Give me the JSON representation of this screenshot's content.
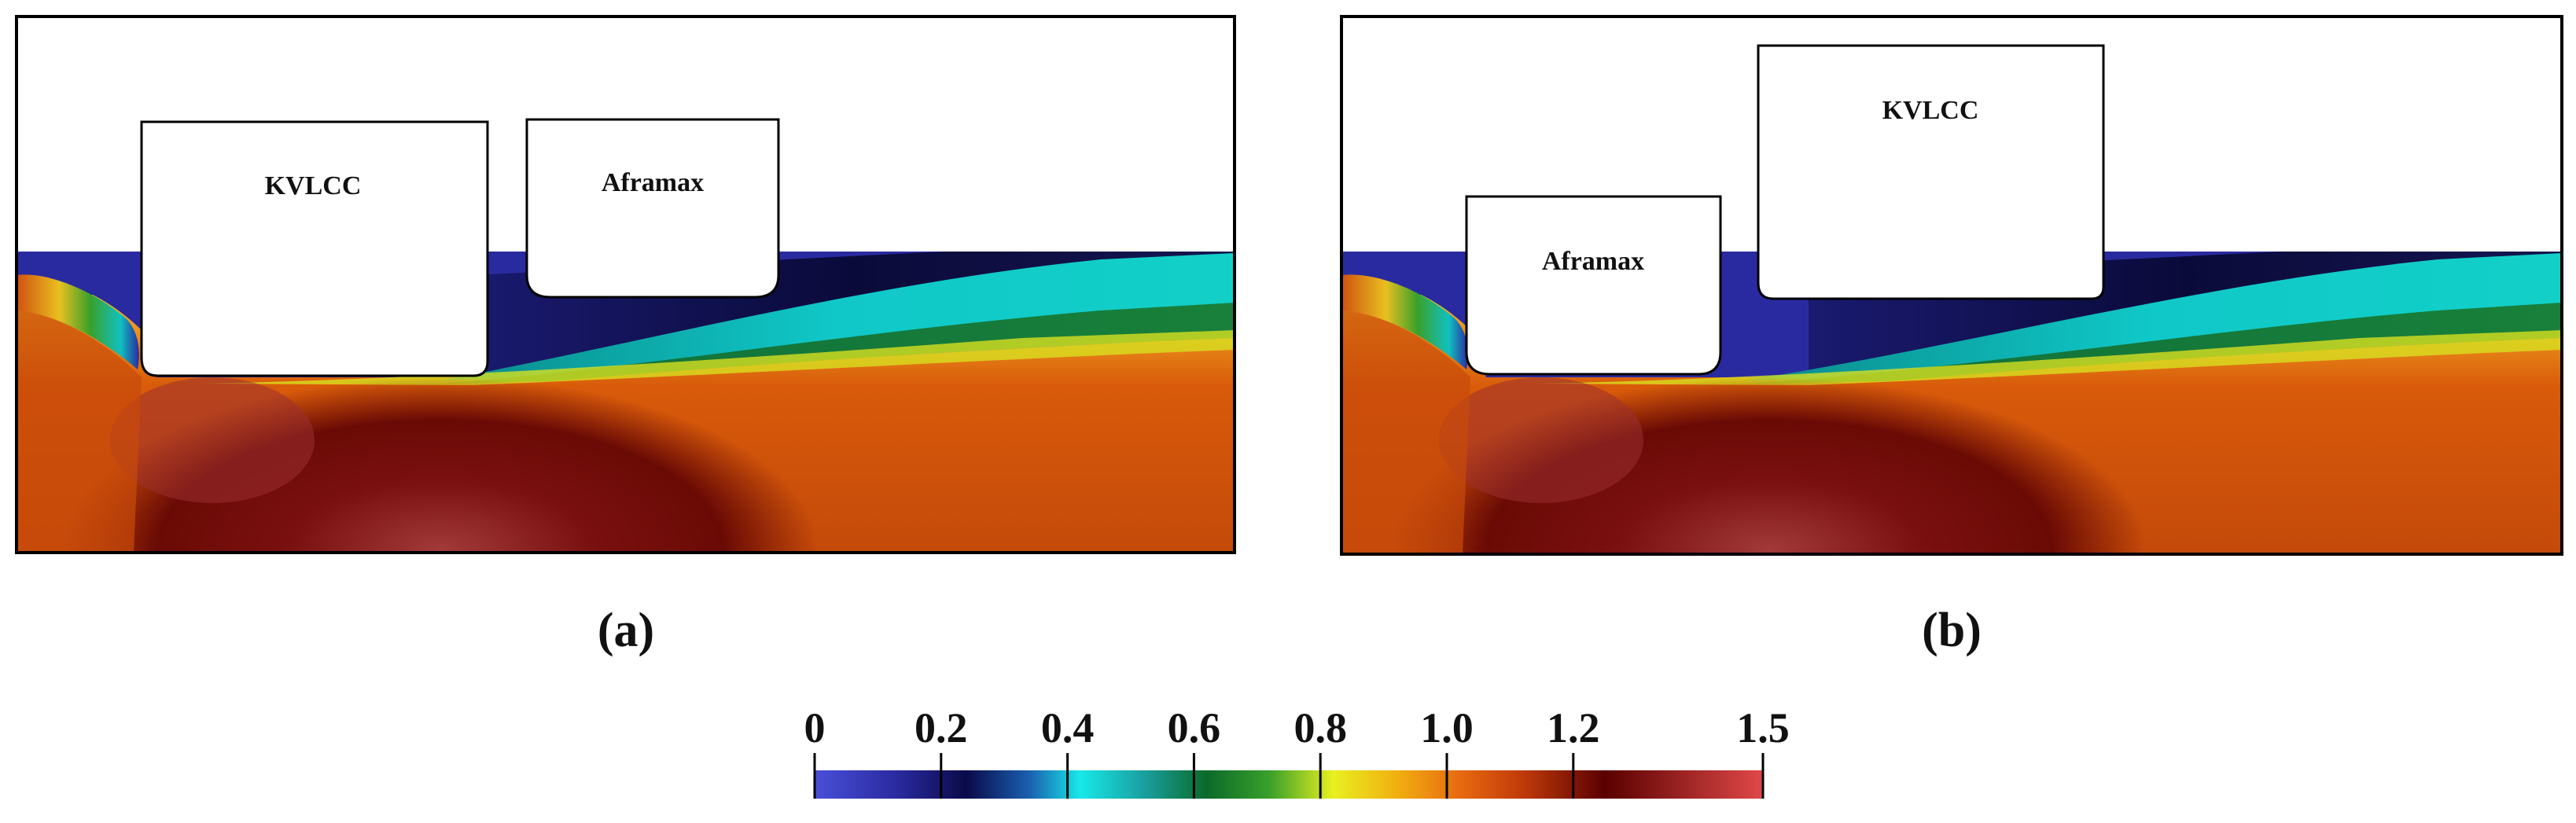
{
  "panels": [
    {
      "id": "a",
      "caption": "(a)",
      "ships": [
        {
          "name": "KVLCC"
        },
        {
          "name": "Aframax"
        }
      ]
    },
    {
      "id": "b",
      "caption": "(b)",
      "ships": [
        {
          "name": "Aframax"
        },
        {
          "name": "KVLCC"
        }
      ]
    }
  ],
  "colorbar": {
    "min": 0,
    "max": 1.5,
    "ticks": [
      {
        "value": 0,
        "label": "0"
      },
      {
        "value": 0.2,
        "label": "0.2"
      },
      {
        "value": 0.4,
        "label": "0.4"
      },
      {
        "value": 0.6,
        "label": "0.6"
      },
      {
        "value": 0.8,
        "label": "0.8"
      },
      {
        "value": 1.0,
        "label": "1.0"
      },
      {
        "value": 1.2,
        "label": "1.2"
      },
      {
        "value": 1.5,
        "label": "1.5"
      }
    ],
    "colors": [
      {
        "value": 0.0,
        "color": "#4a4fd8"
      },
      {
        "value": 0.13,
        "color": "#2a2aa0"
      },
      {
        "value": 0.24,
        "color": "#0a0a4a"
      },
      {
        "value": 0.34,
        "color": "#1a60b0"
      },
      {
        "value": 0.42,
        "color": "#18e8e8"
      },
      {
        "value": 0.52,
        "color": "#1aa0a0"
      },
      {
        "value": 0.62,
        "color": "#0a6a2a"
      },
      {
        "value": 0.72,
        "color": "#3aa02a"
      },
      {
        "value": 0.82,
        "color": "#e8f020"
      },
      {
        "value": 0.92,
        "color": "#f0b010"
      },
      {
        "value": 1.02,
        "color": "#e86a10"
      },
      {
        "value": 1.12,
        "color": "#c03a0a"
      },
      {
        "value": 1.25,
        "color": "#5a0000"
      },
      {
        "value": 1.5,
        "color": "#e04848"
      }
    ]
  }
}
